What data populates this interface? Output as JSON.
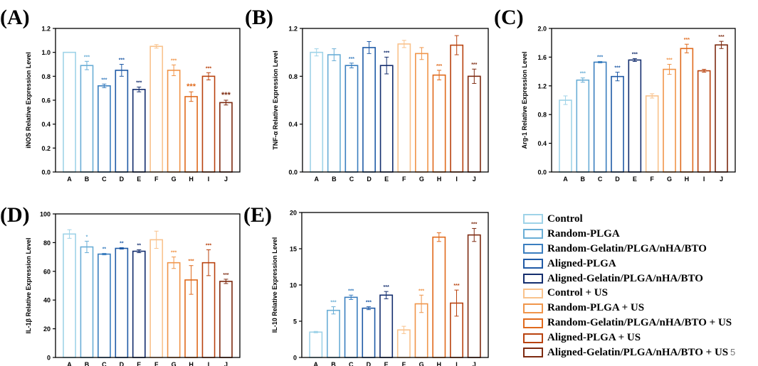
{
  "chart_data": [
    {
      "type": "bar",
      "panel_label": "(A)",
      "ylabel": "iNOS Relative Expression Level",
      "ylim": [
        0,
        1.2
      ],
      "yticks": [
        "0.0",
        "0.2",
        "0.4",
        "0.6",
        "0.8",
        "1.0",
        "1.2"
      ],
      "categories": [
        "A",
        "B",
        "C",
        "D",
        "E",
        "F",
        "G",
        "H",
        "I",
        "J"
      ],
      "values": [
        1.0,
        0.89,
        0.72,
        0.85,
        0.69,
        1.05,
        0.85,
        0.63,
        0.8,
        0.58
      ],
      "errors": [
        0.0,
        0.035,
        0.015,
        0.05,
        0.02,
        0.015,
        0.045,
        0.04,
        0.03,
        0.02
      ],
      "annotations": [
        "",
        "***",
        "***",
        "***",
        "***",
        "",
        "***",
        "***",
        "***",
        "***"
      ]
    },
    {
      "type": "bar",
      "panel_label": "(B)",
      "ylabel": "TNF-α Relative Expression Level",
      "ylim": [
        0,
        1.2
      ],
      "yticks": [
        "0.0",
        "0.4",
        "0.8",
        "1.2"
      ],
      "categories": [
        "A",
        "B",
        "C",
        "D",
        "E",
        "F",
        "G",
        "H",
        "I",
        "J"
      ],
      "values": [
        1.0,
        0.98,
        0.89,
        1.04,
        0.89,
        1.07,
        0.99,
        0.81,
        1.06,
        0.8
      ],
      "errors": [
        0.03,
        0.05,
        0.02,
        0.05,
        0.07,
        0.03,
        0.05,
        0.04,
        0.08,
        0.06
      ],
      "annotations": [
        "",
        "",
        "***",
        "",
        "***",
        "",
        "",
        "***",
        "",
        "***"
      ]
    },
    {
      "type": "bar",
      "panel_label": "(C)",
      "ylabel": "Arg-1 Relative Expression Level",
      "ylim": [
        0,
        2.0
      ],
      "yticks": [
        "0.0",
        "0.4",
        "0.8",
        "1.2",
        "1.6",
        "2.0"
      ],
      "categories": [
        "A",
        "B",
        "C",
        "D",
        "E",
        "F",
        "G",
        "H",
        "I",
        "J"
      ],
      "values": [
        1.0,
        1.28,
        1.53,
        1.33,
        1.56,
        1.06,
        1.43,
        1.72,
        1.41,
        1.77
      ],
      "errors": [
        0.06,
        0.03,
        0.01,
        0.06,
        0.02,
        0.03,
        0.07,
        0.06,
        0.02,
        0.05
      ],
      "annotations": [
        "",
        "***",
        "***",
        "***",
        "***",
        "",
        "***",
        "***",
        "",
        "***"
      ]
    },
    {
      "type": "bar",
      "panel_label": "(D)",
      "ylabel": "IL-1β Relative Expression Level",
      "ylim": [
        0,
        100
      ],
      "yticks": [
        "0",
        "20",
        "40",
        "60",
        "80",
        "100"
      ],
      "categories": [
        "A",
        "B",
        "C",
        "D",
        "E",
        "F",
        "G",
        "H",
        "I",
        "J"
      ],
      "values": [
        86,
        77,
        72,
        76,
        74,
        82,
        66,
        54,
        66,
        53
      ],
      "errors": [
        3,
        4,
        0.5,
        0.5,
        1,
        6,
        4,
        10,
        9,
        1.5
      ],
      "annotations": [
        "",
        "*",
        "**",
        "**",
        "**",
        "",
        "***",
        "***",
        "***",
        "***"
      ]
    },
    {
      "type": "bar",
      "panel_label": "(E)",
      "ylabel": "IL-10 Relative Expression Level",
      "ylim": [
        0,
        20
      ],
      "yticks": [
        "0",
        "5",
        "10",
        "15",
        "20"
      ],
      "categories": [
        "A",
        "B",
        "C",
        "D",
        "E",
        "F",
        "G",
        "H",
        "I",
        "J"
      ],
      "values": [
        3.5,
        6.5,
        8.3,
        6.8,
        8.6,
        3.8,
        7.4,
        16.6,
        7.5,
        16.9
      ],
      "errors": [
        0.1,
        0.5,
        0.3,
        0.2,
        0.5,
        0.5,
        1.2,
        0.6,
        1.8,
        0.9
      ],
      "annotations": [
        "",
        "***",
        "***",
        "***",
        "***",
        "",
        "***",
        "",
        "***",
        "***"
      ]
    }
  ],
  "legend": [
    {
      "label": "Control",
      "color": "#9fd3e8"
    },
    {
      "label": "Random-PLGA",
      "color": "#6aaed6"
    },
    {
      "label": "Random-Gelatin/PLGA/nHA/BTO",
      "color": "#3a7ebf"
    },
    {
      "label": "Aligned-PLGA",
      "color": "#1f5aa6"
    },
    {
      "label": "Aligned-Gelatin/PLGA/nHA/BTO",
      "color": "#142e6e"
    },
    {
      "label": "Control + US",
      "color": "#f9c28c"
    },
    {
      "label": "Random-PLGA + US",
      "color": "#f0954a"
    },
    {
      "label": "Random-Gelatin/PLGA/nHA/BTO + US",
      "color": "#e06a1c"
    },
    {
      "label": "Aligned-PLGA + US",
      "color": "#b9430f"
    },
    {
      "label": "Aligned-Gelatin/PLGA/nHA/BTO + US",
      "color": "#7d2a10"
    }
  ],
  "page_number": "5"
}
